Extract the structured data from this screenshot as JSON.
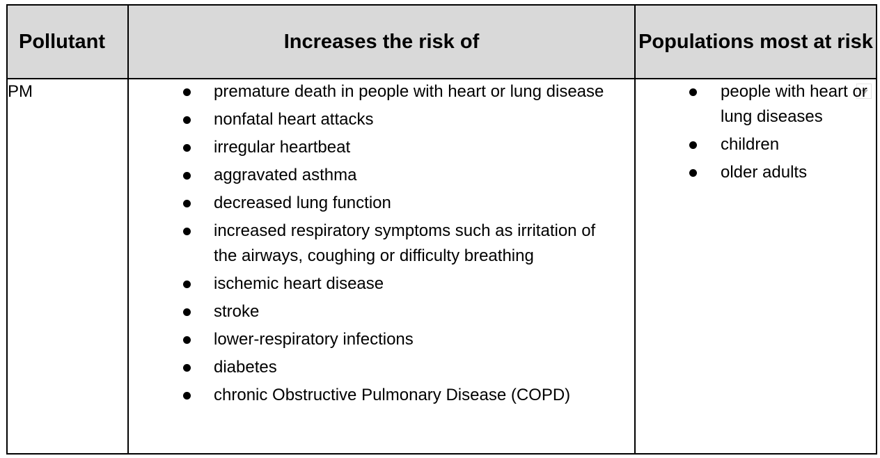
{
  "table": {
    "headers": [
      "Pollutant",
      "Increases the risk of",
      "Populations most at risk"
    ],
    "rows": [
      {
        "pollutant": "PM",
        "risks": [
          "premature death in people with heart or lung disease",
          "nonfatal heart attacks",
          "irregular heartbeat",
          "aggravated asthma",
          "decreased lung function",
          "increased respiratory symptoms such as irritation of the airways, coughing or difficulty breathing",
          "ischemic heart disease",
          "stroke",
          "lower-respiratory infections",
          "diabetes",
          "chronic Obstructive Pulmonary Disease (COPD)"
        ],
        "populations": [
          "people with heart or lung diseases",
          "children",
          "older adults"
        ]
      }
    ],
    "header_bg": "#d9d9d9",
    "dropdown_icon": "chevron-down-icon"
  }
}
